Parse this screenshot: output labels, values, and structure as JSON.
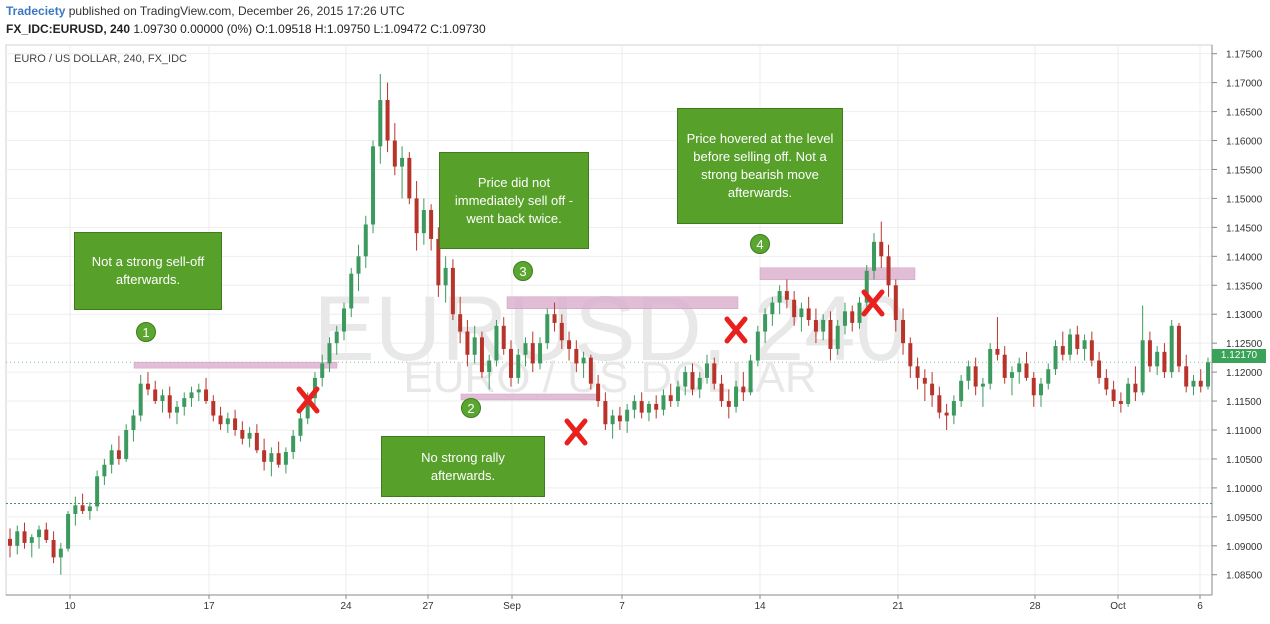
{
  "header": {
    "brand": "Tradeciety",
    "published": "published on TradingView.com, December 26, 2015 17:26 UTC",
    "symbol": "FX_IDC:EURUSD, 240",
    "ohlc": "1.09730 0.00000 (0%) O:1.09518 H:1.09750 L:1.09472 C:1.09730"
  },
  "pane_label": "EURO / US DOLLAR, 240, FX_IDC",
  "watermark": {
    "line1": "EURUSD, 240",
    "line2": "EURO / US DOLLAR"
  },
  "last_price_label": "1.12170",
  "annotations": {
    "callouts": [
      {
        "id": "c1",
        "text": "Not a strong sell-off afterwards."
      },
      {
        "id": "c2",
        "text": "No strong rally afterwards."
      },
      {
        "id": "c3",
        "text": "Price did not immediately sell off - went back twice."
      },
      {
        "id": "c4",
        "text": "Price hovered at the level before selling off. Not a strong bearish move afterwards."
      }
    ],
    "badges": [
      "1",
      "2",
      "3",
      "4"
    ],
    "colors": {
      "callout_bg": "#57a02a",
      "zone": "#dcb2d0",
      "cross": "#e8201e",
      "up": "#3c9a5f",
      "down": "#b8342b"
    }
  },
  "chart_data": {
    "type": "candlestick",
    "title": "",
    "xlabel": "",
    "ylabel": "",
    "ylim": [
      1.0815,
      1.1765
    ],
    "y_ticks": [
      "1.17500",
      "1.17000",
      "1.16500",
      "1.16000",
      "1.15500",
      "1.15000",
      "1.14500",
      "1.14000",
      "1.13500",
      "1.13000",
      "1.12500",
      "1.12000",
      "1.11500",
      "1.11000",
      "1.10500",
      "1.10000",
      "1.09500",
      "1.09000",
      "1.08500"
    ],
    "x_ticks": [
      "10",
      "17",
      "24",
      "27",
      "Sep",
      "7",
      "14",
      "21",
      "28",
      "Oct",
      "6"
    ],
    "grid": true,
    "last_price": 1.1217,
    "reference_line": 1.0973,
    "zones": [
      {
        "label": "1",
        "price": 1.1212
      },
      {
        "label": "2",
        "price": 1.1157
      },
      {
        "label": "3",
        "price": 1.1325
      },
      {
        "label": "4",
        "price": 1.1375
      }
    ],
    "series": [
      {
        "values": [
          [
            1.0912,
            1.093,
            1.088,
            1.09
          ],
          [
            1.09,
            1.0935,
            1.0885,
            1.0925
          ],
          [
            1.0925,
            1.094,
            1.0895,
            1.0905
          ],
          [
            1.0905,
            1.092,
            1.088,
            1.0915
          ],
          [
            1.0915,
            1.0935,
            1.0895,
            1.0928
          ],
          [
            1.0928,
            1.094,
            1.0905,
            1.091
          ],
          [
            1.091,
            1.0925,
            1.087,
            1.088
          ],
          [
            1.088,
            1.0905,
            1.085,
            1.0895
          ],
          [
            1.0895,
            1.096,
            1.089,
            1.0955
          ],
          [
            1.0955,
            1.0985,
            1.0935,
            1.097
          ],
          [
            1.097,
            1.099,
            1.0955,
            1.096
          ],
          [
            1.096,
            1.0975,
            1.0945,
            1.0968
          ],
          [
            1.0968,
            1.103,
            1.096,
            1.102
          ],
          [
            1.102,
            1.105,
            1.1005,
            1.104
          ],
          [
            1.104,
            1.1075,
            1.1025,
            1.1065
          ],
          [
            1.1065,
            1.109,
            1.104,
            1.105
          ],
          [
            1.105,
            1.111,
            1.1045,
            1.11
          ],
          [
            1.11,
            1.1135,
            1.108,
            1.1125
          ],
          [
            1.1125,
            1.1195,
            1.1115,
            1.118
          ],
          [
            1.118,
            1.12,
            1.116,
            1.117
          ],
          [
            1.117,
            1.1185,
            1.1145,
            1.115
          ],
          [
            1.115,
            1.117,
            1.113,
            1.116
          ],
          [
            1.116,
            1.1175,
            1.112,
            1.113
          ],
          [
            1.113,
            1.115,
            1.111,
            1.114
          ],
          [
            1.114,
            1.1165,
            1.1125,
            1.1155
          ],
          [
            1.1155,
            1.1175,
            1.114,
            1.1165
          ],
          [
            1.1165,
            1.118,
            1.115,
            1.117
          ],
          [
            1.117,
            1.119,
            1.1145,
            1.115
          ],
          [
            1.115,
            1.116,
            1.1115,
            1.1125
          ],
          [
            1.1125,
            1.114,
            1.11,
            1.111
          ],
          [
            1.111,
            1.113,
            1.1095,
            1.112
          ],
          [
            1.112,
            1.1135,
            1.109,
            1.11
          ],
          [
            1.11,
            1.1115,
            1.1075,
            1.1085
          ],
          [
            1.1085,
            1.1105,
            1.107,
            1.1095
          ],
          [
            1.1095,
            1.111,
            1.106,
            1.1065
          ],
          [
            1.1065,
            1.1085,
            1.103,
            1.1045
          ],
          [
            1.1045,
            1.107,
            1.102,
            1.106
          ],
          [
            1.106,
            1.108,
            1.1035,
            1.104
          ],
          [
            1.104,
            1.107,
            1.1025,
            1.1062
          ],
          [
            1.1062,
            1.11,
            1.105,
            1.109
          ],
          [
            1.109,
            1.113,
            1.108,
            1.112
          ],
          [
            1.112,
            1.1165,
            1.111,
            1.1155
          ],
          [
            1.1155,
            1.12,
            1.114,
            1.119
          ],
          [
            1.119,
            1.123,
            1.1175,
            1.1215
          ],
          [
            1.1215,
            1.126,
            1.12,
            1.125
          ],
          [
            1.125,
            1.128,
            1.123,
            1.127
          ],
          [
            1.127,
            1.132,
            1.1255,
            1.131
          ],
          [
            1.131,
            1.138,
            1.1295,
            1.137
          ],
          [
            1.137,
            1.142,
            1.134,
            1.14
          ],
          [
            1.14,
            1.147,
            1.138,
            1.1455
          ],
          [
            1.1455,
            1.16,
            1.144,
            1.159
          ],
          [
            1.159,
            1.1715,
            1.156,
            1.167
          ],
          [
            1.167,
            1.17,
            1.158,
            1.16
          ],
          [
            1.16,
            1.163,
            1.154,
            1.1555
          ],
          [
            1.1555,
            1.159,
            1.15,
            1.157
          ],
          [
            1.157,
            1.158,
            1.149,
            1.15
          ],
          [
            1.15,
            1.153,
            1.141,
            1.144
          ],
          [
            1.144,
            1.15,
            1.142,
            1.148
          ],
          [
            1.148,
            1.149,
            1.141,
            1.143
          ],
          [
            1.143,
            1.145,
            1.133,
            1.135
          ],
          [
            1.135,
            1.14,
            1.132,
            1.138
          ],
          [
            1.138,
            1.1395,
            1.129,
            1.13
          ],
          [
            1.13,
            1.133,
            1.125,
            1.127
          ],
          [
            1.127,
            1.129,
            1.121,
            1.123
          ],
          [
            1.123,
            1.128,
            1.1215,
            1.126
          ],
          [
            1.126,
            1.127,
            1.119,
            1.12
          ],
          [
            1.12,
            1.123,
            1.117,
            1.122
          ],
          [
            1.122,
            1.129,
            1.121,
            1.128
          ],
          [
            1.128,
            1.1295,
            1.123,
            1.124
          ],
          [
            1.124,
            1.1255,
            1.1175,
            1.119
          ],
          [
            1.119,
            1.124,
            1.118,
            1.123
          ],
          [
            1.123,
            1.126,
            1.121,
            1.125
          ],
          [
            1.125,
            1.127,
            1.12,
            1.1215
          ],
          [
            1.1215,
            1.126,
            1.1205,
            1.125
          ],
          [
            1.125,
            1.131,
            1.124,
            1.13
          ],
          [
            1.13,
            1.132,
            1.127,
            1.1285
          ],
          [
            1.1285,
            1.13,
            1.124,
            1.1255
          ],
          [
            1.1255,
            1.127,
            1.122,
            1.124
          ],
          [
            1.124,
            1.1255,
            1.12,
            1.1215
          ],
          [
            1.1215,
            1.1235,
            1.119,
            1.1225
          ],
          [
            1.1225,
            1.123,
            1.117,
            1.118
          ],
          [
            1.118,
            1.1195,
            1.114,
            1.115
          ],
          [
            1.115,
            1.1165,
            1.11,
            1.111
          ],
          [
            1.111,
            1.1135,
            1.1085,
            1.1125
          ],
          [
            1.1125,
            1.114,
            1.11,
            1.1115
          ],
          [
            1.1115,
            1.1145,
            1.1095,
            1.1135
          ],
          [
            1.1135,
            1.116,
            1.112,
            1.115
          ],
          [
            1.115,
            1.1165,
            1.112,
            1.113
          ],
          [
            1.113,
            1.115,
            1.1115,
            1.1145
          ],
          [
            1.1145,
            1.116,
            1.112,
            1.1135
          ],
          [
            1.1135,
            1.117,
            1.1125,
            1.116
          ],
          [
            1.116,
            1.118,
            1.114,
            1.115
          ],
          [
            1.115,
            1.1185,
            1.114,
            1.1175
          ],
          [
            1.1175,
            1.121,
            1.116,
            1.12
          ],
          [
            1.12,
            1.1215,
            1.116,
            1.117
          ],
          [
            1.117,
            1.12,
            1.1155,
            1.119
          ],
          [
            1.119,
            1.123,
            1.118,
            1.1215
          ],
          [
            1.1215,
            1.1225,
            1.117,
            1.118
          ],
          [
            1.118,
            1.1195,
            1.114,
            1.115
          ],
          [
            1.115,
            1.117,
            1.112,
            1.114
          ],
          [
            1.114,
            1.1185,
            1.113,
            1.1175
          ],
          [
            1.1175,
            1.12,
            1.115,
            1.1165
          ],
          [
            1.1165,
            1.123,
            1.116,
            1.122
          ],
          [
            1.122,
            1.128,
            1.121,
            1.127
          ],
          [
            1.127,
            1.131,
            1.125,
            1.13
          ],
          [
            1.13,
            1.133,
            1.128,
            1.132
          ],
          [
            1.132,
            1.135,
            1.13,
            1.134
          ],
          [
            1.134,
            1.136,
            1.131,
            1.1325
          ],
          [
            1.1325,
            1.134,
            1.128,
            1.1295
          ],
          [
            1.1295,
            1.132,
            1.127,
            1.131
          ],
          [
            1.131,
            1.133,
            1.128,
            1.129
          ],
          [
            1.129,
            1.131,
            1.125,
            1.127
          ],
          [
            1.127,
            1.13,
            1.1255,
            1.129
          ],
          [
            1.129,
            1.1305,
            1.122,
            1.124
          ],
          [
            1.124,
            1.129,
            1.123,
            1.128
          ],
          [
            1.128,
            1.132,
            1.1265,
            1.1305
          ],
          [
            1.1305,
            1.1315,
            1.127,
            1.1285
          ],
          [
            1.1285,
            1.133,
            1.1275,
            1.132
          ],
          [
            1.132,
            1.1385,
            1.131,
            1.1375
          ],
          [
            1.1375,
            1.144,
            1.136,
            1.1425
          ],
          [
            1.1425,
            1.146,
            1.138,
            1.14
          ],
          [
            1.14,
            1.142,
            1.133,
            1.135
          ],
          [
            1.135,
            1.136,
            1.127,
            1.129
          ],
          [
            1.129,
            1.131,
            1.123,
            1.125
          ],
          [
            1.125,
            1.126,
            1.119,
            1.121
          ],
          [
            1.121,
            1.1225,
            1.117,
            1.119
          ],
          [
            1.119,
            1.1205,
            1.115,
            1.118
          ],
          [
            1.118,
            1.12,
            1.114,
            1.116
          ],
          [
            1.116,
            1.1175,
            1.112,
            1.113
          ],
          [
            1.113,
            1.1145,
            1.11,
            1.1125
          ],
          [
            1.1125,
            1.116,
            1.111,
            1.115
          ],
          [
            1.115,
            1.1195,
            1.114,
            1.1185
          ],
          [
            1.1185,
            1.122,
            1.117,
            1.121
          ],
          [
            1.121,
            1.1225,
            1.116,
            1.1175
          ],
          [
            1.1175,
            1.119,
            1.114,
            1.118
          ],
          [
            1.118,
            1.125,
            1.117,
            1.124
          ],
          [
            1.124,
            1.1295,
            1.122,
            1.123
          ],
          [
            1.123,
            1.1245,
            1.118,
            1.119
          ],
          [
            1.119,
            1.121,
            1.116,
            1.12
          ],
          [
            1.12,
            1.1225,
            1.118,
            1.1215
          ],
          [
            1.1215,
            1.1235,
            1.1185,
            1.119
          ],
          [
            1.119,
            1.12,
            1.114,
            1.116
          ],
          [
            1.116,
            1.119,
            1.114,
            1.118
          ],
          [
            1.118,
            1.1215,
            1.117,
            1.1205
          ],
          [
            1.1205,
            1.1255,
            1.1195,
            1.1245
          ],
          [
            1.1245,
            1.127,
            1.122,
            1.123
          ],
          [
            1.123,
            1.1275,
            1.122,
            1.1265
          ],
          [
            1.1265,
            1.128,
            1.123,
            1.124
          ],
          [
            1.124,
            1.1265,
            1.122,
            1.1255
          ],
          [
            1.1255,
            1.127,
            1.121,
            1.122
          ],
          [
            1.122,
            1.1235,
            1.118,
            1.119
          ],
          [
            1.119,
            1.1205,
            1.116,
            1.117
          ],
          [
            1.117,
            1.1185,
            1.114,
            1.115
          ],
          [
            1.115,
            1.1165,
            1.113,
            1.1145
          ],
          [
            1.1145,
            1.119,
            1.114,
            1.118
          ],
          [
            1.118,
            1.121,
            1.115,
            1.1165
          ],
          [
            1.1165,
            1.1315,
            1.116,
            1.1255
          ],
          [
            1.1255,
            1.127,
            1.12,
            1.121
          ],
          [
            1.121,
            1.1245,
            1.1195,
            1.1235
          ],
          [
            1.1235,
            1.125,
            1.119,
            1.12
          ],
          [
            1.12,
            1.129,
            1.119,
            1.128
          ],
          [
            1.128,
            1.1285,
            1.12,
            1.121
          ],
          [
            1.121,
            1.123,
            1.1165,
            1.1175
          ],
          [
            1.1175,
            1.1195,
            1.116,
            1.1185
          ],
          [
            1.1185,
            1.1205,
            1.1165,
            1.1175
          ],
          [
            1.1175,
            1.1225,
            1.117,
            1.1217
          ]
        ]
      }
    ]
  }
}
